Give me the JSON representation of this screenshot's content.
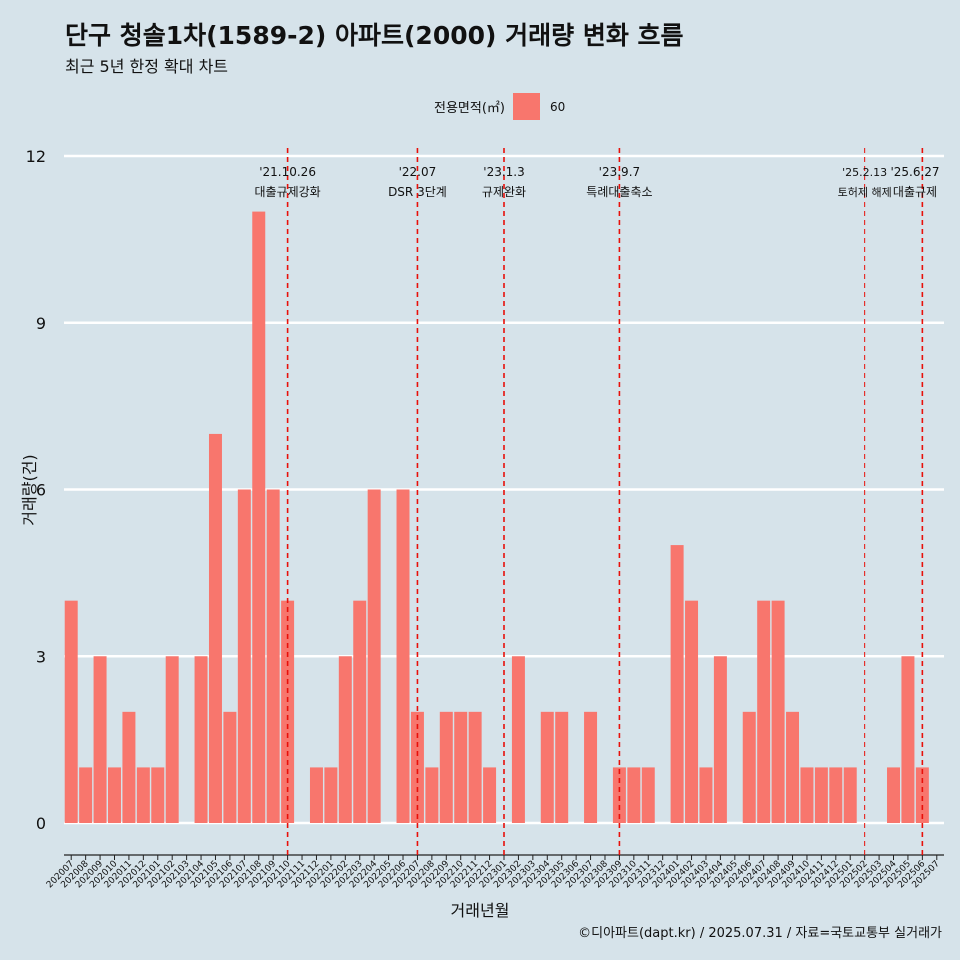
{
  "title": "단구 청솔1차(1589-2) 아파트(2000) 거래량 변화 흐름",
  "subtitle": "최근 5년 한정 확대 차트",
  "legend": {
    "title": "전용면적(㎡)",
    "item": "60",
    "color": "#f8766d"
  },
  "caption": "©디아파트(dapt.kr) / 2025.07.31 / 자료=국토교통부 실거래가",
  "chart_data": {
    "type": "bar",
    "xlabel": "거래년월",
    "ylabel": "거래량(건)",
    "ylim": [
      0,
      12
    ],
    "yticks": [
      0,
      3,
      6,
      9,
      12
    ],
    "grid": true,
    "legend_position": "top",
    "bar_color": "#f8766d",
    "categories": [
      "202007",
      "202008",
      "202009",
      "202010",
      "202011",
      "202012",
      "202101",
      "202102",
      "202103",
      "202104",
      "202105",
      "202106",
      "202107",
      "202108",
      "202109",
      "202110",
      "202111",
      "202112",
      "202201",
      "202202",
      "202203",
      "202204",
      "202205",
      "202206",
      "202207",
      "202208",
      "202209",
      "202210",
      "202211",
      "202212",
      "202301",
      "202302",
      "202303",
      "202304",
      "202305",
      "202306",
      "202307",
      "202308",
      "202309",
      "202310",
      "202311",
      "202312",
      "202401",
      "202402",
      "202403",
      "202404",
      "202405",
      "202406",
      "202407",
      "202408",
      "202409",
      "202410",
      "202411",
      "202412",
      "202501",
      "202502",
      "202503",
      "202504",
      "202505",
      "202506",
      "202507"
    ],
    "series": [
      {
        "values": [
          4,
          1,
          3,
          1,
          2,
          1,
          1,
          3,
          0,
          3,
          7,
          2,
          6,
          11,
          6,
          4,
          0,
          1,
          1,
          3,
          4,
          6,
          0,
          6,
          2,
          1,
          2,
          2,
          2,
          1,
          0,
          3,
          0,
          2,
          2,
          0,
          2,
          0,
          1,
          1,
          1,
          0,
          5,
          4,
          1,
          3,
          0,
          2,
          4,
          4,
          2,
          1,
          1,
          1,
          1,
          0,
          0,
          1,
          3,
          1,
          0
        ]
      }
    ],
    "annotations": [
      {
        "x": "202110",
        "date": "'21.10.26",
        "label": "대출규제강화"
      },
      {
        "x": "202207",
        "date": "'22.07",
        "label": "DSR 3단계"
      },
      {
        "x": "202301",
        "date": "'23.1.3",
        "label": "규제완화"
      },
      {
        "x": "202309",
        "date": "'23.9.7",
        "label": "특례대출축소"
      },
      {
        "x": "202502",
        "date": "'25.2.13",
        "label": "토허제 해제"
      },
      {
        "x": "202506",
        "date": "'25.6.27",
        "label": "대출규제"
      }
    ]
  }
}
